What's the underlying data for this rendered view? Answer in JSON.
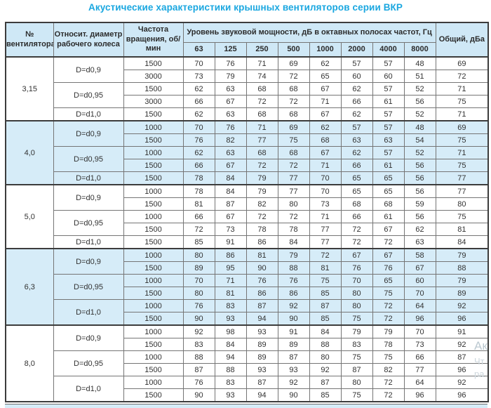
{
  "title": "Акустические характеристики крышных вентиляторов серии ВКР",
  "colors": {
    "title_accent": "#1aa7e0",
    "header_bg": "#cfe8f6",
    "shaded_group_bg": "#d6ecf8",
    "border_dark": "#3c3c3c",
    "border_light": "#757575"
  },
  "watermark": {
    "line1": "Ак",
    "line2": "Чт",
    "line3": "ра"
  },
  "table": {
    "headers": {
      "fan_number": "№ вентилятора",
      "diameter": "Относит. диаметр рабочего колеса",
      "rpm": "Частота вращения, об/мин",
      "spl_group": "Уровень звуковой мощности, дБ в октавных полосах частот, Гц",
      "frequencies": [
        "63",
        "125",
        "250",
        "500",
        "1000",
        "2000",
        "4000",
        "8000"
      ],
      "total": "Общий, дБа"
    },
    "groups": [
      {
        "fan": "3,15",
        "shaded": false,
        "subgroups": [
          {
            "diameter": "D=d0,9",
            "rows": [
              {
                "rpm": "1500",
                "levels": [
                  70,
                  76,
                  71,
                  69,
                  62,
                  57,
                  57,
                  48
                ],
                "total": 69
              },
              {
                "rpm": "3000",
                "levels": [
                  73,
                  79,
                  74,
                  72,
                  65,
                  60,
                  60,
                  51
                ],
                "total": 72
              }
            ]
          },
          {
            "diameter": "D=d0,95",
            "rows": [
              {
                "rpm": "1500",
                "levels": [
                  62,
                  63,
                  68,
                  68,
                  67,
                  62,
                  57,
                  52
                ],
                "total": 71
              },
              {
                "rpm": "3000",
                "levels": [
                  66,
                  67,
                  72,
                  72,
                  71,
                  66,
                  61,
                  56
                ],
                "total": 75
              }
            ]
          },
          {
            "diameter": "D=d1,0",
            "rows": [
              {
                "rpm": "1500",
                "levels": [
                  62,
                  63,
                  68,
                  68,
                  67,
                  62,
                  57,
                  52
                ],
                "total": 71
              }
            ]
          }
        ]
      },
      {
        "fan": "4,0",
        "shaded": true,
        "subgroups": [
          {
            "diameter": "D=d0,9",
            "rows": [
              {
                "rpm": "1000",
                "levels": [
                  70,
                  76,
                  71,
                  69,
                  62,
                  57,
                  57,
                  48
                ],
                "total": 69
              },
              {
                "rpm": "1500",
                "levels": [
                  76,
                  82,
                  77,
                  75,
                  68,
                  63,
                  63,
                  54
                ],
                "total": 75
              }
            ]
          },
          {
            "diameter": "D=d0,95",
            "rows": [
              {
                "rpm": "1000",
                "levels": [
                  62,
                  63,
                  68,
                  68,
                  67,
                  62,
                  57,
                  52
                ],
                "total": 71
              },
              {
                "rpm": "1500",
                "levels": [
                  66,
                  67,
                  72,
                  72,
                  71,
                  66,
                  61,
                  56
                ],
                "total": 75
              }
            ]
          },
          {
            "diameter": "D=d1,0",
            "rows": [
              {
                "rpm": "1500",
                "levels": [
                  78,
                  84,
                  79,
                  77,
                  70,
                  65,
                  65,
                  56
                ],
                "total": 77
              }
            ]
          }
        ]
      },
      {
        "fan": "5,0",
        "shaded": false,
        "subgroups": [
          {
            "diameter": "D=d0,9",
            "rows": [
              {
                "rpm": "1000",
                "levels": [
                  78,
                  84,
                  79,
                  77,
                  70,
                  65,
                  65,
                  56
                ],
                "total": 77
              },
              {
                "rpm": "1500",
                "levels": [
                  81,
                  87,
                  82,
                  80,
                  73,
                  68,
                  68,
                  59
                ],
                "total": 80
              }
            ]
          },
          {
            "diameter": "D=d0,95",
            "rows": [
              {
                "rpm": "1000",
                "levels": [
                  66,
                  67,
                  72,
                  72,
                  71,
                  66,
                  61,
                  56
                ],
                "total": 75
              },
              {
                "rpm": "1500",
                "levels": [
                  72,
                  73,
                  78,
                  78,
                  77,
                  72,
                  67,
                  62
                ],
                "total": 81
              }
            ]
          },
          {
            "diameter": "D=d1,0",
            "rows": [
              {
                "rpm": "1500",
                "levels": [
                  85,
                  91,
                  86,
                  84,
                  77,
                  72,
                  72,
                  63
                ],
                "total": 84
              }
            ]
          }
        ]
      },
      {
        "fan": "6,3",
        "shaded": true,
        "subgroups": [
          {
            "diameter": "D=d0,9",
            "rows": [
              {
                "rpm": "1000",
                "levels": [
                  80,
                  86,
                  81,
                  79,
                  72,
                  67,
                  67,
                  58
                ],
                "total": 79
              },
              {
                "rpm": "1500",
                "levels": [
                  89,
                  95,
                  90,
                  88,
                  81,
                  76,
                  76,
                  67
                ],
                "total": 88
              }
            ]
          },
          {
            "diameter": "D=d0,95",
            "rows": [
              {
                "rpm": "1000",
                "levels": [
                  70,
                  71,
                  76,
                  76,
                  75,
                  70,
                  65,
                  60
                ],
                "total": 79
              },
              {
                "rpm": "1500",
                "levels": [
                  80,
                  81,
                  86,
                  86,
                  85,
                  80,
                  75,
                  70
                ],
                "total": 89
              }
            ]
          },
          {
            "diameter": "D=d1,0",
            "rows": [
              {
                "rpm": "1000",
                "levels": [
                  76,
                  83,
                  87,
                  92,
                  87,
                  80,
                  72,
                  64
                ],
                "total": 92
              },
              {
                "rpm": "1500",
                "levels": [
                  90,
                  93,
                  94,
                  90,
                  85,
                  75,
                  72,
                  96
                ],
                "total": 96
              }
            ]
          }
        ]
      },
      {
        "fan": "8,0",
        "shaded": false,
        "subgroups": [
          {
            "diameter": "D=d0,9",
            "rows": [
              {
                "rpm": "1000",
                "levels": [
                  92,
                  98,
                  93,
                  91,
                  84,
                  79,
                  79,
                  70
                ],
                "total": 91
              },
              {
                "rpm": "1500",
                "levels": [
                  83,
                  84,
                  89,
                  89,
                  88,
                  83,
                  78,
                  73
                ],
                "total": 92
              }
            ]
          },
          {
            "diameter": "D=d0,95",
            "rows": [
              {
                "rpm": "1000",
                "levels": [
                  88,
                  94,
                  89,
                  87,
                  80,
                  75,
                  75,
                  66
                ],
                "total": 87
              },
              {
                "rpm": "1500",
                "levels": [
                  87,
                  88,
                  93,
                  93,
                  92,
                  87,
                  82,
                  77
                ],
                "total": 96
              }
            ]
          },
          {
            "diameter": "D=d1,0",
            "rows": [
              {
                "rpm": "1000",
                "levels": [
                  76,
                  83,
                  87,
                  92,
                  87,
                  80,
                  72,
                  64
                ],
                "total": 92
              },
              {
                "rpm": "1500",
                "levels": [
                  90,
                  93,
                  94,
                  90,
                  85,
                  75,
                  72,
                  96
                ],
                "total": 96
              }
            ]
          }
        ]
      }
    ]
  }
}
